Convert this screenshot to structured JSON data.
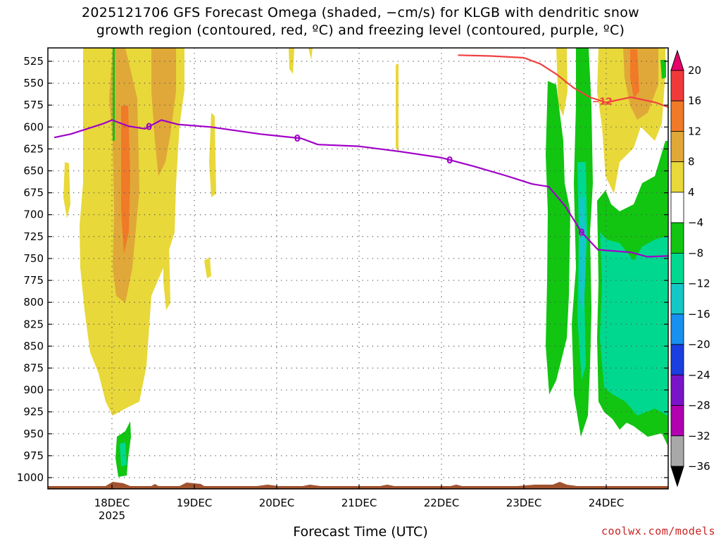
{
  "chart_data": {
    "type": "contour",
    "title_line1": "2025121706 GFS Forecast Omega (shaded, −cm/s) for KLGB with dendritic snow",
    "title_line2": "growth region (contoured, red, ºC) and freezing level (contoured, purple, ºC)",
    "xlabel": "Forecast Time (UTC)",
    "ylabel": "",
    "y_ticks": [
      525,
      550,
      575,
      600,
      625,
      650,
      675,
      700,
      725,
      750,
      775,
      800,
      825,
      850,
      875,
      900,
      925,
      950,
      975,
      1000
    ],
    "x_ticks": [
      "18DEC",
      "19DEC",
      "20DEC",
      "21DEC",
      "22DEC",
      "23DEC",
      "24DEC"
    ],
    "x_tick_year": "2025",
    "x_range_days": [
      17.3,
      24.8
    ],
    "colorbar": {
      "labels": [
        "20",
        "16",
        "12",
        "8",
        "4",
        "−4",
        "−8",
        "−12",
        "−16",
        "−20",
        "−24",
        "−28",
        "−32",
        "−36"
      ],
      "colors": [
        "#e8006a",
        "#f03a3a",
        "#f07a28",
        "#e0a838",
        "#e8d83a",
        "#ffffff",
        "#11c511",
        "#00d890",
        "#14c8c8",
        "#1890f0",
        "#1a3ee0",
        "#7a14c8",
        "#b000b0",
        "#a8a8a8",
        "#000000"
      ]
    },
    "freezing_level": {
      "label": "0",
      "color": "#a000c8",
      "points_day_hpa": [
        [
          17.3,
          612
        ],
        [
          17.5,
          608
        ],
        [
          17.7,
          602
        ],
        [
          17.9,
          596
        ],
        [
          18.0,
          592
        ],
        [
          18.2,
          599
        ],
        [
          18.4,
          602
        ],
        [
          18.6,
          592
        ],
        [
          18.8,
          597
        ],
        [
          19.2,
          600
        ],
        [
          19.8,
          608
        ],
        [
          20.3,
          613
        ],
        [
          20.5,
          620
        ],
        [
          21.0,
          622
        ],
        [
          21.5,
          628
        ],
        [
          22.0,
          635
        ],
        [
          22.4,
          645
        ],
        [
          22.8,
          656
        ],
        [
          23.1,
          665
        ],
        [
          23.3,
          668
        ],
        [
          23.5,
          690
        ],
        [
          23.7,
          720
        ],
        [
          23.9,
          740
        ],
        [
          24.3,
          743
        ],
        [
          24.5,
          748
        ],
        [
          24.8,
          747
        ]
      ]
    },
    "dgz_contour": {
      "label": "−12",
      "color": "#f04040",
      "points_day_hpa": [
        [
          22.2,
          518
        ],
        [
          22.6,
          519
        ],
        [
          23.0,
          521
        ],
        [
          23.2,
          528
        ],
        [
          23.4,
          540
        ],
        [
          23.6,
          555
        ],
        [
          23.8,
          566
        ],
        [
          24.0,
          572
        ],
        [
          24.3,
          566
        ],
        [
          24.6,
          572
        ],
        [
          24.8,
          579
        ]
      ]
    }
  },
  "credit": "coolwx.com/models"
}
